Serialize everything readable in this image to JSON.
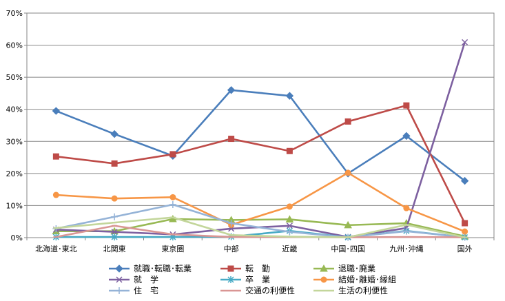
{
  "chart_data": {
    "type": "line",
    "title": "",
    "xlabel": "",
    "ylabel": "",
    "categories": [
      "北海道･東北",
      "北関東",
      "東京圏",
      "中部",
      "近畿",
      "中国･四国",
      "九州･沖縄",
      "国外"
    ],
    "ylim": [
      0,
      70
    ],
    "yticks": [
      0,
      10,
      20,
      30,
      40,
      50,
      60,
      70
    ],
    "ytick_labels": [
      "0%",
      "10%",
      "20%",
      "30%",
      "40%",
      "50%",
      "60%",
      "70%"
    ],
    "grid": true,
    "legend_position": "bottom",
    "series": [
      {
        "name": "就職･転職･転業",
        "color": "#4a7ebb",
        "marker": "diamond",
        "values": [
          39.5,
          32.3,
          25.5,
          46.0,
          44.2,
          20.0,
          31.7,
          17.7
        ]
      },
      {
        "name": "転　勤",
        "color": "#be4b48",
        "marker": "square",
        "values": [
          25.3,
          23.1,
          26.0,
          30.8,
          27.0,
          36.2,
          41.2,
          4.5
        ]
      },
      {
        "name": "退職･廃業",
        "color": "#98b954",
        "marker": "triangle",
        "values": [
          2.0,
          2.0,
          5.8,
          5.5,
          5.7,
          3.9,
          4.5,
          0.4
        ]
      },
      {
        "name": "就　学",
        "color": "#7d60a0",
        "marker": "x",
        "values": [
          2.5,
          1.8,
          1.0,
          2.8,
          3.7,
          0.2,
          3.0,
          60.9
        ]
      },
      {
        "name": "卒　業",
        "color": "#46aac5",
        "marker": "asterisk",
        "values": [
          0.2,
          0.2,
          0.2,
          0.3,
          2.1,
          0.1,
          2.1,
          0.1
        ]
      },
      {
        "name": "結婚･離婚･縁組",
        "color": "#f79646",
        "marker": "circle",
        "values": [
          13.3,
          12.2,
          12.6,
          4.0,
          9.7,
          20.2,
          9.2,
          1.9
        ]
      },
      {
        "name": "住　宅",
        "color": "#95b3d7",
        "marker": "plus",
        "values": [
          2.8,
          6.5,
          10.3,
          4.5,
          1.8,
          0.1,
          2.0,
          0.1
        ]
      },
      {
        "name": "交通の利便性",
        "color": "#d99694",
        "marker": "dash",
        "values": [
          0.2,
          3.7,
          1.0,
          0.2,
          0.2,
          0.1,
          0.2,
          0.1
        ]
      },
      {
        "name": "生活の利便性",
        "color": "#c3d69b",
        "marker": "dash",
        "values": [
          3.0,
          4.7,
          6.3,
          0.8,
          0.3,
          0.1,
          4.0,
          0.1
        ]
      }
    ]
  }
}
